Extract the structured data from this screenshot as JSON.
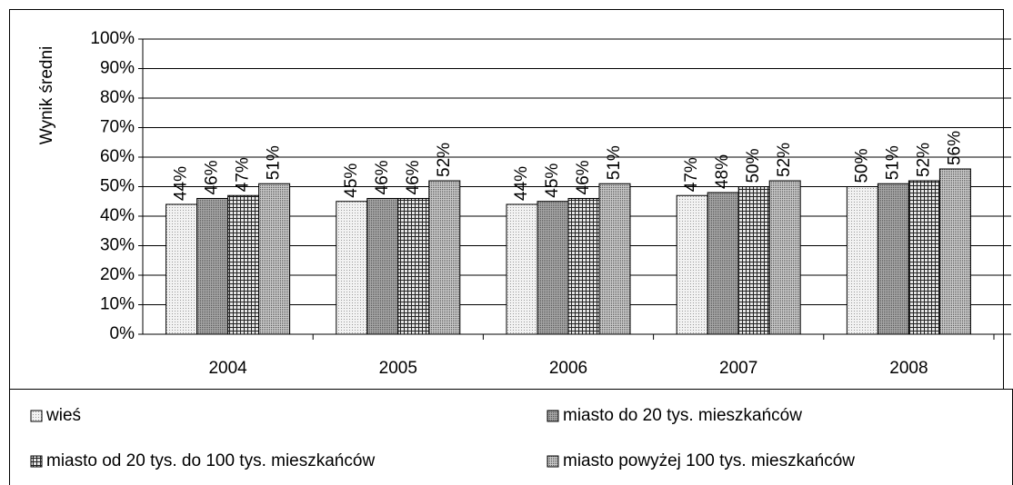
{
  "chart_data": {
    "type": "bar",
    "y_label": "Wynik średni",
    "categories": [
      "2004",
      "2005",
      "2006",
      "2007",
      "2008"
    ],
    "series": [
      {
        "name": "wieś",
        "color": "#f2f2f2",
        "pattern": "fine-dots",
        "values": [
          44,
          45,
          44,
          47,
          50
        ],
        "value_labels": [
          "44%",
          "45%",
          "44%",
          "47%",
          "50%"
        ]
      },
      {
        "name": "miasto do 20 tys. mieszkańców",
        "color": "#a6a6a6",
        "pattern": "dots",
        "values": [
          46,
          46,
          45,
          48,
          51
        ],
        "value_labels": [
          "46%",
          "46%",
          "45%",
          "48%",
          "51%"
        ]
      },
      {
        "name": "miasto od 20 tys. do 100 tys. mieszkańców",
        "color": "#e6e6e6",
        "pattern": "grid",
        "values": [
          47,
          46,
          46,
          50,
          52
        ],
        "value_labels": [
          "47%",
          "46%",
          "46%",
          "50%",
          "52%"
        ]
      },
      {
        "name": "miasto powyżej 100 tys. mieszkańców",
        "color": "#c8c8c8",
        "pattern": "dots",
        "values": [
          51,
          52,
          51,
          52,
          56
        ],
        "value_labels": [
          "51%",
          "52%",
          "51%",
          "52%",
          "56%"
        ]
      }
    ],
    "ylim": [
      0,
      100
    ],
    "yticks": [
      {
        "value": 0,
        "label": "0%"
      },
      {
        "value": 10,
        "label": "10%"
      },
      {
        "value": 20,
        "label": "20%"
      },
      {
        "value": 30,
        "label": "30%"
      },
      {
        "value": 40,
        "label": "40%"
      },
      {
        "value": 50,
        "label": "50%"
      },
      {
        "value": 60,
        "label": "60%"
      },
      {
        "value": 70,
        "label": "70%"
      },
      {
        "value": 80,
        "label": "80%"
      },
      {
        "value": 90,
        "label": "90%"
      },
      {
        "value": 100,
        "label": "100%"
      }
    ],
    "grid": true,
    "legend": "bottom"
  }
}
